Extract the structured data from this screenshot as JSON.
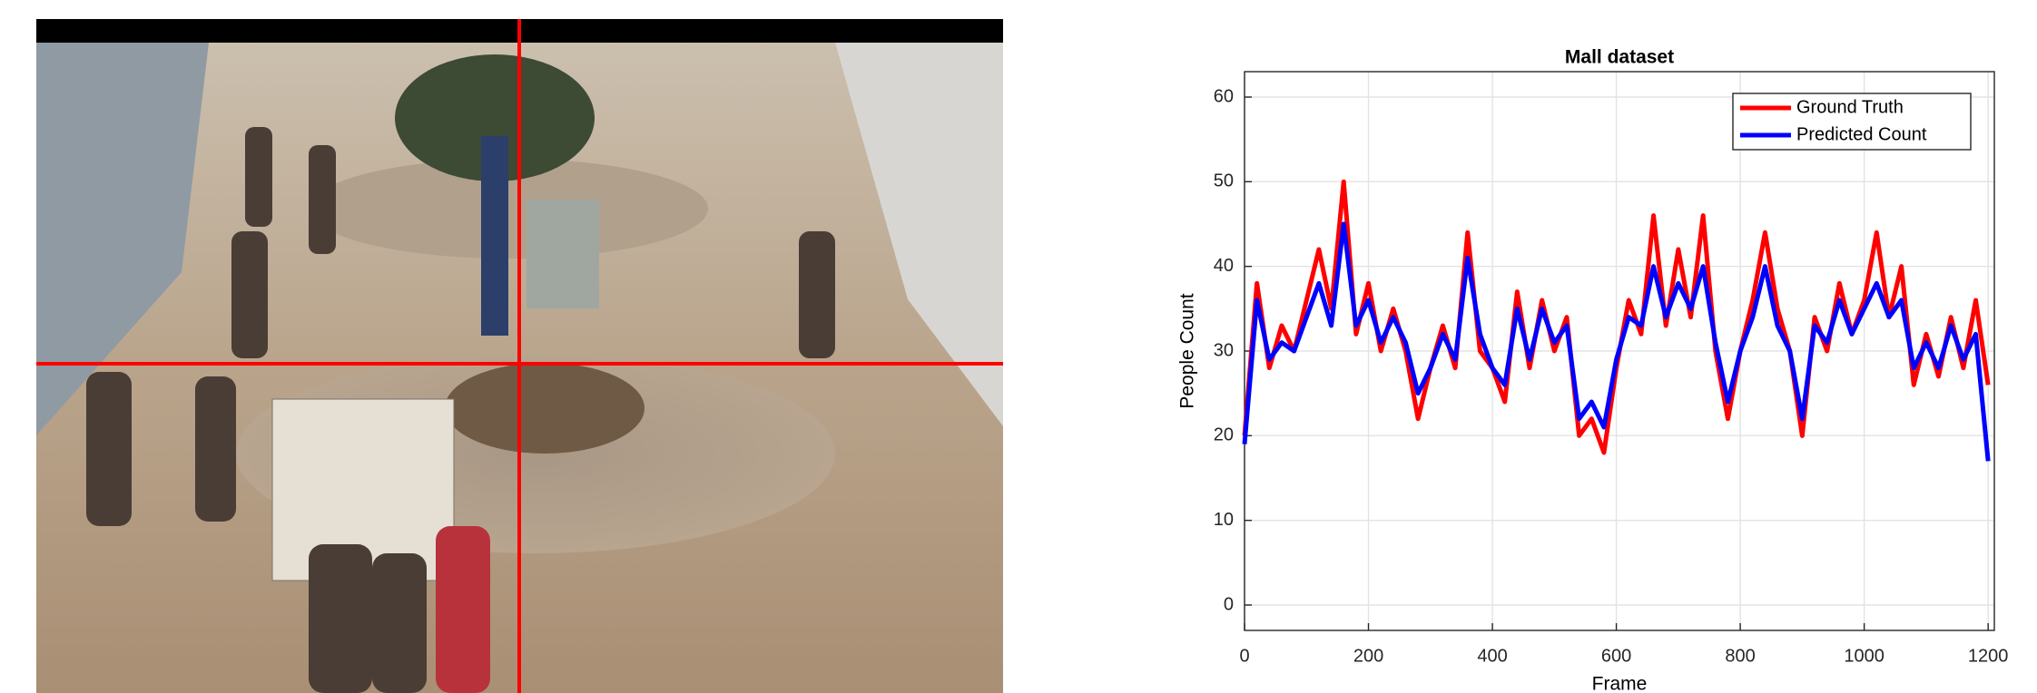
{
  "chart_data": {
    "type": "line",
    "title": "Mall dataset",
    "xlabel": "Frame",
    "ylabel": "People Count",
    "x": [
      0,
      20,
      40,
      60,
      80,
      100,
      120,
      140,
      160,
      180,
      200,
      220,
      240,
      260,
      280,
      300,
      320,
      340,
      360,
      380,
      400,
      420,
      440,
      460,
      480,
      500,
      520,
      540,
      560,
      580,
      600,
      620,
      640,
      660,
      680,
      700,
      720,
      740,
      760,
      780,
      800,
      820,
      840,
      860,
      880,
      900,
      920,
      940,
      960,
      980,
      1000,
      1020,
      1040,
      1060,
      1080,
      1100,
      1120,
      1140,
      1160,
      1180,
      1200
    ],
    "series": [
      {
        "name": "Ground Truth",
        "color": "#ff0000",
        "values": [
          20,
          38,
          28,
          33,
          30,
          36,
          42,
          35,
          50,
          32,
          38,
          30,
          35,
          30,
          22,
          28,
          33,
          28,
          44,
          30,
          28,
          24,
          37,
          28,
          36,
          30,
          34,
          20,
          22,
          18,
          28,
          36,
          32,
          46,
          33,
          42,
          34,
          46,
          30,
          22,
          30,
          36,
          44,
          35,
          30,
          20,
          34,
          30,
          38,
          32,
          36,
          44,
          34,
          40,
          26,
          32,
          27,
          34,
          28,
          36,
          26
        ]
      },
      {
        "name": "Predicted Count",
        "color": "#0000ff",
        "values": [
          19,
          36,
          29,
          31,
          30,
          34,
          38,
          33,
          45,
          33,
          36,
          31,
          34,
          31,
          25,
          28,
          32,
          29,
          41,
          32,
          28,
          26,
          35,
          29,
          35,
          31,
          33,
          22,
          24,
          21,
          29,
          34,
          33,
          40,
          34,
          38,
          35,
          40,
          31,
          24,
          30,
          34,
          40,
          33,
          30,
          22,
          33,
          31,
          36,
          32,
          35,
          38,
          34,
          36,
          28,
          31,
          28,
          33,
          29,
          32,
          17
        ]
      }
    ],
    "xlim": [
      0,
      1210
    ],
    "ylim": [
      -3,
      63
    ],
    "xticks": [
      0,
      200,
      400,
      600,
      800,
      1000,
      1200
    ],
    "yticks": [
      0,
      10,
      20,
      30,
      40,
      50,
      60
    ],
    "grid": true,
    "legend": "top-right"
  }
}
